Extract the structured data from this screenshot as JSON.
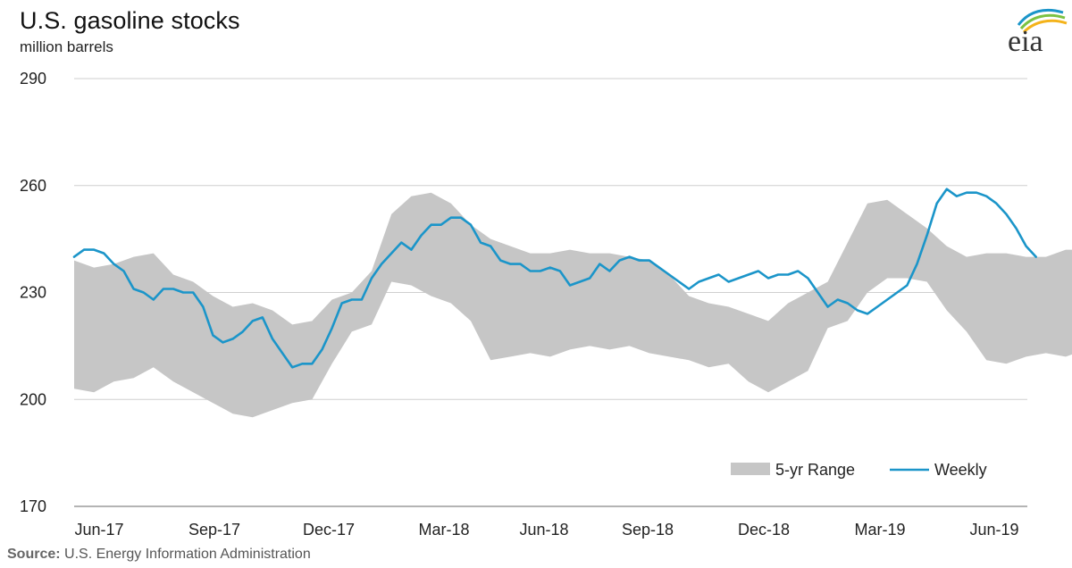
{
  "header": {
    "title": "U.S. gasoline stocks",
    "subtitle": "million barrels"
  },
  "logo": {
    "text": "eia",
    "icon": "eia-logo"
  },
  "footer": {
    "source_label": "Source:",
    "source_text": "U.S. Energy Information Administration"
  },
  "colors": {
    "range_fill": "#c6c6c6",
    "weekly_line": "#1b95c9",
    "gridline": "#cfcfcf"
  },
  "chart_data": {
    "type": "area",
    "title": "U.S. gasoline stocks",
    "ylabel": "million barrels",
    "xlabel": "",
    "ylim": [
      170,
      290
    ],
    "yticks": [
      170,
      200,
      230,
      260,
      290
    ],
    "x_tick_labels": [
      "Jun-17",
      "Sep-17",
      "Dec-17",
      "Mar-18",
      "Jun-18",
      "Sep-18",
      "Dec-18",
      "Mar-19",
      "Jun-19"
    ],
    "grid": true,
    "legend_position": "bottom-right",
    "legend": [
      "5-yr Range",
      "Weekly"
    ],
    "series": [
      {
        "name": "5-yr Range",
        "kind": "range",
        "weeks": [
          0,
          2,
          4,
          6,
          8,
          10,
          12,
          14,
          16,
          18,
          20,
          22,
          24,
          26,
          28,
          30,
          32,
          34,
          36,
          38,
          40,
          42,
          44,
          46,
          48,
          50,
          52,
          54,
          56,
          58,
          60,
          62,
          64,
          66,
          68,
          70,
          72,
          74,
          76,
          78,
          80,
          82,
          84,
          86,
          88,
          90,
          92,
          94,
          96,
          98,
          100,
          102,
          104
        ],
        "upper": [
          239,
          237,
          238,
          240,
          241,
          235,
          233,
          229,
          226,
          227,
          225,
          221,
          222,
          228,
          230,
          236,
          252,
          257,
          258,
          255,
          249,
          245,
          243,
          241,
          241,
          242,
          241,
          241,
          240,
          239,
          235,
          229,
          227,
          226,
          224,
          222,
          227,
          230,
          233,
          244,
          255,
          256,
          252,
          248,
          243,
          240,
          241,
          241,
          240,
          240,
          242,
          242,
          240
        ],
        "lower": [
          203,
          202,
          205,
          206,
          209,
          205,
          202,
          199,
          196,
          195,
          197,
          199,
          200,
          210,
          219,
          221,
          233,
          232,
          229,
          227,
          222,
          211,
          212,
          213,
          212,
          214,
          215,
          214,
          215,
          213,
          212,
          211,
          209,
          210,
          205,
          202,
          205,
          208,
          220,
          222,
          230,
          234,
          234,
          233,
          225,
          219,
          211,
          210,
          212,
          213,
          212,
          214,
          214
        ]
      },
      {
        "name": "Weekly",
        "kind": "line",
        "weeks": [
          0,
          1,
          2,
          3,
          4,
          5,
          6,
          7,
          8,
          9,
          10,
          11,
          12,
          13,
          14,
          15,
          16,
          17,
          18,
          19,
          20,
          21,
          22,
          23,
          24,
          25,
          26,
          27,
          28,
          29,
          30,
          31,
          32,
          33,
          34,
          35,
          36,
          37,
          38,
          39,
          40,
          41,
          42,
          43,
          44,
          45,
          46,
          47,
          48,
          49,
          50,
          51,
          52,
          53,
          54,
          55,
          56,
          57,
          58,
          59,
          60,
          61,
          62,
          63,
          64,
          65,
          66,
          67,
          68,
          69,
          70,
          71,
          72,
          73,
          74,
          75,
          76,
          77,
          78,
          79,
          80,
          81,
          82,
          83,
          84,
          85,
          86,
          87,
          88,
          89,
          90,
          91,
          92,
          93,
          94,
          95,
          96,
          97
        ],
        "values": [
          240,
          242,
          242,
          241,
          238,
          236,
          231,
          230,
          228,
          231,
          231,
          230,
          230,
          226,
          218,
          216,
          217,
          219,
          222,
          223,
          217,
          213,
          209,
          210,
          210,
          214,
          220,
          227,
          228,
          228,
          234,
          238,
          241,
          244,
          242,
          246,
          249,
          249,
          251,
          251,
          249,
          244,
          243,
          239,
          238,
          238,
          236,
          236,
          237,
          236,
          232,
          233,
          234,
          238,
          236,
          239,
          240,
          239,
          239,
          237,
          235,
          233,
          231,
          233,
          234,
          235,
          233,
          234,
          235,
          236,
          234,
          235,
          235,
          236,
          234,
          230,
          226,
          228,
          227,
          225,
          224,
          226,
          228,
          230,
          232,
          238,
          246,
          255,
          259,
          257,
          258,
          258,
          257,
          255,
          252,
          248,
          243,
          240
        ]
      }
    ]
  }
}
